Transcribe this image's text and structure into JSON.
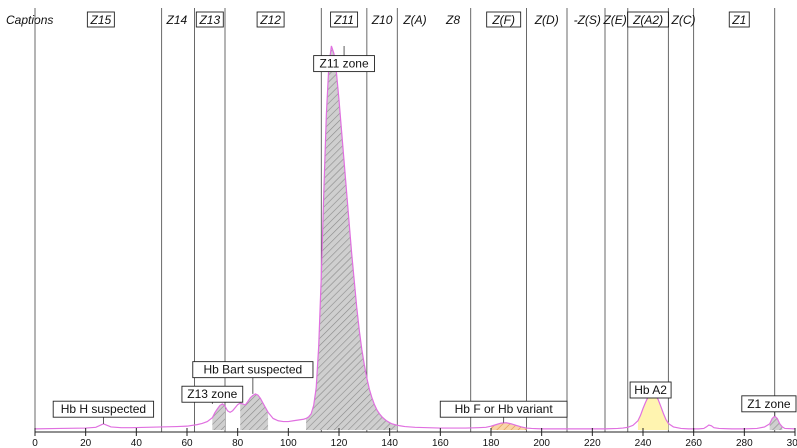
{
  "chart_data": {
    "type": "area",
    "caption_title": "Captions",
    "xlim": [
      0,
      300
    ],
    "x_ticks": [
      0,
      20,
      40,
      60,
      80,
      100,
      120,
      140,
      160,
      180,
      200,
      220,
      240,
      260,
      280,
      300
    ],
    "x_tick_labels": [
      "0",
      "20",
      "40",
      "60",
      "80",
      "100",
      "120",
      "140",
      "160",
      "180",
      "200",
      "220",
      "240",
      "260",
      "280",
      "300"
    ],
    "zone_boundaries": [
      0,
      50,
      63,
      75,
      113,
      131,
      143,
      172,
      194,
      210,
      225,
      234,
      250,
      260,
      292
    ],
    "zones": [
      {
        "label": "Z15",
        "x": 26,
        "boxed": true
      },
      {
        "label": "Z14",
        "x": 56,
        "boxed": false
      },
      {
        "label": "Z13",
        "x": 69,
        "boxed": true
      },
      {
        "label": "Z12",
        "x": 93,
        "boxed": true
      },
      {
        "label": "Z11",
        "x": 122,
        "boxed": true
      },
      {
        "label": "Z10",
        "x": 137,
        "boxed": false
      },
      {
        "label": "Z(A)",
        "x": 150,
        "boxed": false
      },
      {
        "label": "Z8",
        "x": 165,
        "boxed": false
      },
      {
        "label": "Z(F)",
        "x": 185,
        "boxed": true
      },
      {
        "label": "Z(D)",
        "x": 202,
        "boxed": false
      },
      {
        "label": "-Z(S)",
        "x": 218,
        "boxed": false
      },
      {
        "label": "Z(E)",
        "x": 229,
        "boxed": false
      },
      {
        "label": "Z(A2)",
        "x": 242,
        "boxed": true
      },
      {
        "label": "Z(C)",
        "x": 256,
        "boxed": false
      },
      {
        "label": "Z1",
        "x": 278,
        "boxed": true
      }
    ],
    "curve": {
      "x": [
        0,
        10,
        20,
        24,
        27,
        30,
        34,
        38,
        44,
        50,
        56,
        60,
        64,
        66,
        68,
        70,
        71,
        72,
        73,
        74,
        75,
        76,
        77,
        78,
        79,
        80,
        81,
        82,
        83,
        84,
        85,
        86,
        87,
        88,
        89,
        90,
        92,
        94,
        96,
        98,
        100,
        102,
        104,
        106,
        107,
        108,
        109,
        110,
        111,
        112,
        113,
        114,
        115,
        116,
        117,
        118,
        119,
        120,
        121,
        122,
        123,
        124,
        125,
        126,
        127,
        128,
        129,
        130,
        131,
        132,
        133,
        134,
        135,
        136,
        137,
        138,
        139,
        140,
        141,
        142,
        144,
        146,
        148,
        150,
        155,
        160,
        165,
        170,
        175,
        178,
        180,
        182,
        184,
        186,
        188,
        190,
        192,
        194,
        196,
        200,
        205,
        210,
        215,
        220,
        225,
        230,
        232,
        234,
        236,
        238,
        239,
        240,
        241,
        242,
        243,
        244,
        245,
        246,
        247,
        248,
        249,
        250,
        252,
        255,
        258,
        260,
        262,
        264,
        265,
        266,
        267,
        268,
        270,
        275,
        280,
        285,
        288,
        290,
        291,
        292,
        293,
        294,
        295,
        296,
        300
      ],
      "y": [
        0.3,
        0.4,
        0.5,
        0.7,
        1.6,
        0.8,
        0.6,
        0.6,
        0.7,
        0.8,
        0.9,
        1.0,
        1.4,
        1.7,
        2.2,
        3.2,
        4.5,
        5.5,
        6.4,
        6.8,
        6.2,
        5.0,
        4.6,
        5.0,
        5.8,
        6.6,
        7.0,
        6.8,
        6.5,
        7.4,
        8.4,
        9.0,
        9.4,
        9.1,
        8.2,
        7.0,
        4.6,
        3.0,
        2.4,
        2.2,
        2.2,
        2.4,
        2.6,
        2.8,
        3.0,
        3.4,
        4.2,
        6.4,
        11.0,
        22.0,
        40.0,
        62.0,
        82.0,
        95.0,
        100.0,
        98.0,
        93.0,
        86.0,
        78.0,
        70.0,
        62.0,
        54.0,
        46.0,
        39.0,
        32.0,
        26.0,
        21.0,
        17.0,
        13.5,
        10.6,
        8.4,
        6.6,
        5.2,
        4.2,
        3.4,
        2.8,
        2.3,
        1.9,
        1.6,
        1.4,
        1.1,
        0.9,
        0.8,
        0.7,
        0.6,
        0.5,
        0.5,
        0.5,
        0.6,
        0.7,
        1.0,
        1.4,
        1.8,
        1.9,
        1.6,
        1.2,
        0.8,
        0.5,
        0.4,
        0.3,
        0.3,
        0.3,
        0.3,
        0.3,
        0.3,
        0.4,
        0.5,
        0.7,
        1.2,
        2.4,
        3.8,
        5.6,
        7.2,
        8.6,
        9.4,
        9.6,
        9.1,
        7.9,
        6.2,
        4.4,
        2.8,
        1.7,
        0.8,
        0.4,
        0.3,
        0.3,
        0.3,
        0.4,
        0.8,
        1.3,
        1.1,
        0.6,
        0.4,
        0.3,
        0.3,
        0.4,
        0.8,
        1.6,
        3.0,
        3.6,
        3.0,
        1.6,
        0.8,
        0.4,
        0.3
      ]
    },
    "annotations": [
      {
        "text": "Z11 zone",
        "x": 122,
        "box_top": 97.5,
        "anchor_y": 100
      },
      {
        "text": "Hb Bart suspected",
        "x": 86,
        "box_top": 17.8,
        "anchor_y": 9.4
      },
      {
        "text": "Z13 zone",
        "x": 70,
        "box_top": 11.4,
        "anchor_y": 6.8
      },
      {
        "text": "Hb H suspected",
        "x": 27,
        "box_top": 7.5,
        "anchor_y": 1.6
      },
      {
        "text": "Hb F or Hb variant",
        "x": 185,
        "box_top": 7.5,
        "anchor_y": 1.9
      },
      {
        "text": "Hb A2",
        "x": 243,
        "box_top": 12.5,
        "anchor_y": 9.6
      },
      {
        "text": "Z1 zone",
        "x": 292,
        "box_top": 8.9,
        "anchor_y": 3.6
      }
    ],
    "peak_fills": [
      {
        "name": "Z13",
        "from": 70,
        "to": 75,
        "color": "#c8c8c8",
        "hatch": true
      },
      {
        "name": "Hb Bart",
        "from": 81,
        "to": 92,
        "color": "#c8c8c8",
        "hatch": true
      },
      {
        "name": "Z11",
        "from": 107,
        "to": 143,
        "color": "#c8c8c8",
        "hatch": true
      },
      {
        "name": "Hb F",
        "from": 180,
        "to": 194,
        "color": "#f6c98a",
        "hatch": true
      },
      {
        "name": "Hb A2",
        "from": 238,
        "to": 250,
        "color": "#fff4b0",
        "hatch": false
      },
      {
        "name": "Z1",
        "from": 290,
        "to": 295,
        "color": "#c8c8c8",
        "hatch": true
      }
    ],
    "colors": {
      "curve": "#e070e0",
      "zone_line": "#444444",
      "axis": "#222222",
      "label_box": "#222222"
    }
  }
}
